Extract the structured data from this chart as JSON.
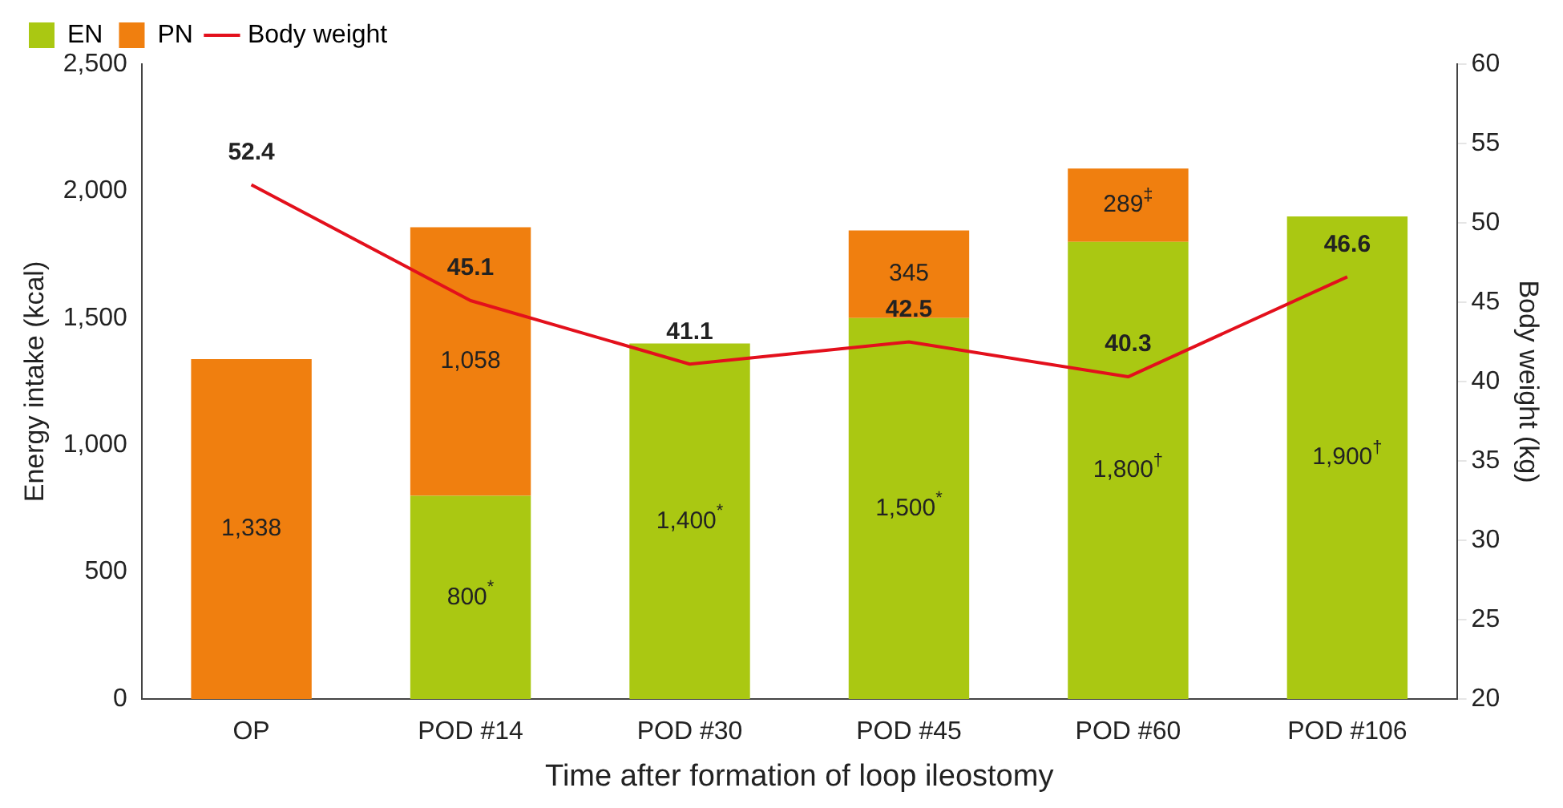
{
  "chart_data": {
    "type": "bar",
    "stacked": true,
    "xlabel": "Time after formation of loop ileostomy",
    "ylabel": "Energy intake (kcal)",
    "y2label": "Body weight (kg)",
    "categories": [
      "OP",
      "POD #14",
      "POD #30",
      "POD #45",
      "POD #60",
      "POD #106"
    ],
    "series": [
      {
        "name": "EN",
        "color": "#aac812",
        "values": [
          null,
          800,
          1400,
          1500,
          1800,
          1900
        ],
        "value_labels": [
          null,
          "800$^{*}$",
          "1,400$^{*}$",
          "1,500$^{*}$",
          "1,800$^{†}$",
          "1,900$^{†}$"
        ]
      },
      {
        "name": "PN",
        "color": "#f07f0f",
        "values": [
          1338,
          1058,
          null,
          345,
          289,
          null
        ],
        "value_labels": [
          "1,338",
          "1,058",
          null,
          "345",
          "289$^{‡}$",
          null
        ]
      },
      {
        "name": "Body weight",
        "type": "line",
        "axis": "y2",
        "color": "#e3101c",
        "values": [
          52.4,
          45.1,
          41.1,
          42.5,
          40.3,
          46.6
        ],
        "value_labels": [
          "52.4",
          "45.1",
          "41.1",
          "42.5",
          "40.3",
          "46.6"
        ]
      }
    ],
    "ylim": [
      0,
      2500
    ],
    "yticks": [
      {
        "value": 0,
        "label": "0"
      },
      {
        "value": 500,
        "label": "500"
      },
      {
        "value": 1000,
        "label": "1,000"
      },
      {
        "value": 1500,
        "label": "1,500"
      },
      {
        "value": 2000,
        "label": "2,000"
      },
      {
        "value": 2500,
        "label": "2,500"
      }
    ],
    "y2lim": [
      20,
      60
    ],
    "y2ticks": [
      20,
      25,
      30,
      35,
      40,
      45,
      50,
      55,
      60
    ],
    "grid": false,
    "legend": "top left",
    "marker": "none",
    "line_style": "solid"
  }
}
